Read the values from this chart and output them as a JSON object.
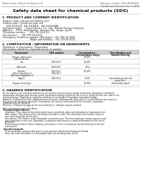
{
  "bg_color": "#f5f5f0",
  "page_bg": "#ffffff",
  "header_left": "Product name: Lithium Ion Battery Cell",
  "header_right_line1": "Reference number: SDS-LIB-000010",
  "header_right_line2": "Established / Revision: Dec.7, 2016",
  "main_title": "Safety data sheet for chemical products (SDS)",
  "section1_title": "1. PRODUCT AND COMPANY IDENTIFICATION",
  "section1_bullets": [
    "Product name: Lithium Ion Battery Cell",
    "Product code: Cylindrical-type cell",
    "    (##-#####, ##-#####,  ##-#####A)",
    "Company name:    Sanyo Electric Co., Ltd., Mobile Energy Company",
    "Address:    2001, Kamiyashiro, Sumoto City, Hyogo, Japan",
    "Telephone number:    +81-799-26-4111",
    "Fax number:    +81-799-26-4129",
    "Emergency telephone number (Weekday): +81-799-26-3562",
    "                                  (Night and holiday): +81-799-26-4101"
  ],
  "section2_title": "2. COMPOSITION / INFORMATION ON INGREDIENTS",
  "section2_sub1": "Substance or preparation: Preparation",
  "section2_sub2": "Information about the chemical nature of product:",
  "table_headers": [
    "Component",
    "CAS number",
    "Concentration /\nConcentration range",
    "Classification and\nhazard labeling"
  ],
  "table_rows": [
    [
      "Lithium cobalt oxide\n(LiMn-Co-Ni-O2)",
      "-",
      "30-60%",
      ""
    ],
    [
      "Iron",
      "7439-89-6",
      "10-30%",
      ""
    ],
    [
      "Aluminum",
      "7429-90-5",
      "2-5%",
      ""
    ],
    [
      "Graphite\n(Kind of graphite-1)\n(All kinds of graphite-1)",
      "7782-42-5\n7782-44-2",
      "10-20%",
      ""
    ],
    [
      "Copper",
      "7440-50-8",
      "5-15%",
      "Sensitization of the skin\ngroup No.2"
    ],
    [
      "Organic electrolyte",
      "-",
      "10-20%",
      "Inflammable liquid"
    ]
  ],
  "section3_title": "3. HAZARDS IDENTIFICATION",
  "section3_text": [
    "For the battery cell, chemical substances are stored in a hermetically sealed metal case, designed to withstand",
    "temperature changes and pressure-proof construction during normal use. As a result, during normal use, there is no",
    "physical danger of ignition or explosion and there is no danger of hazardous materials leakage.",
    "However, if exposed to a fire, added mechanical shocks, decomposed, when electric current without any measure,",
    "the gas inside cannot be operated. The battery cell case will be breached at the extreme, hazardous",
    "materials may be released.",
    "Moreover, if heated strongly by the surrounding fire, solid gas may be emitted.",
    "",
    "Most important hazard and effects:",
    "  Human health effects:",
    "    Inhalation: The release of the electrolyte has an anesthetic action and stimulates a respiratory tract.",
    "    Skin contact: The release of the electrolyte stimulates a skin. The electrolyte skin contact causes a",
    "    sore and stimulation on the skin.",
    "    Eye contact: The release of the electrolyte stimulates eyes. The electrolyte eye contact causes a sore",
    "    and stimulation on the eye. Especially, a substance that causes a strong inflammation of the eye is",
    "    contained.",
    "    Environmental effects: Since a battery cell remains in the environment, do not throw out it into the",
    "    environment.",
    "",
    "  Specific hazards:",
    "    If the electrolyte contacts with water, it will generate detrimental hydrogen fluoride.",
    "    Since the used electrolyte is inflammable liquid, do not bring close to fire."
  ]
}
